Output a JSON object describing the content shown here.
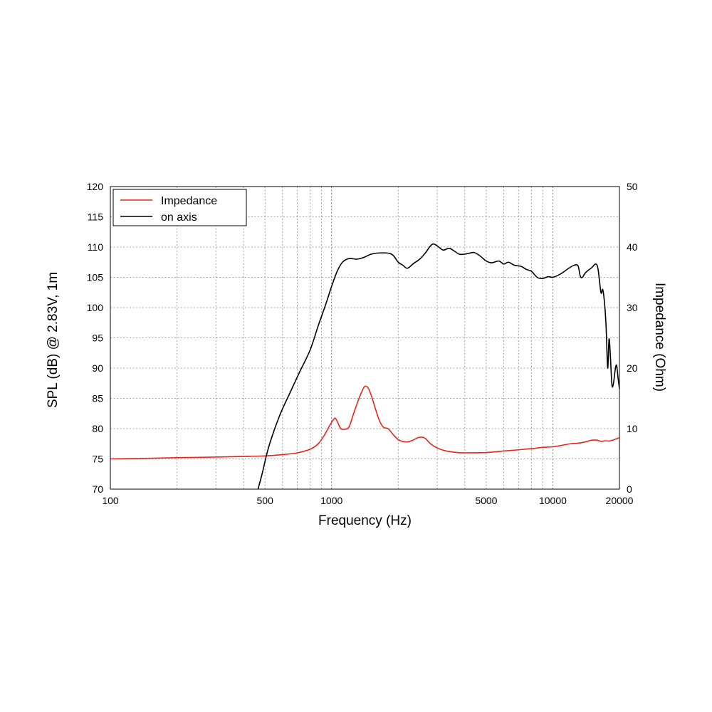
{
  "chart_data": {
    "type": "line",
    "x_scale": "log",
    "xlabel": "Frequency (Hz)",
    "ylabel_left": "SPL (dB) @ 2.83V, 1m",
    "ylabel_right": "Impedance (Ohm)",
    "xlim": [
      100,
      20000
    ],
    "ylim_left": [
      70,
      120
    ],
    "ylim_right": [
      0,
      50
    ],
    "x_tick_labels": [
      "100",
      "500",
      "1000",
      "5000",
      "10000",
      "20000"
    ],
    "x_tick_values": [
      100,
      500,
      1000,
      5000,
      10000,
      20000
    ],
    "y_left_ticks": [
      70,
      75,
      80,
      85,
      90,
      95,
      100,
      105,
      110,
      115,
      120
    ],
    "y_right_ticks": [
      0,
      10,
      20,
      30,
      40,
      50
    ],
    "grid": true,
    "legend": {
      "placement": "top-left",
      "entries": [
        "Impedance",
        "on axis"
      ]
    },
    "colors": {
      "impedance": "#e8251b",
      "on_axis": "#000000"
    },
    "series": [
      {
        "name": "Impedance",
        "axis": "right",
        "color": "#e8251b",
        "points": [
          [
            100,
            5.0
          ],
          [
            150,
            5.1
          ],
          [
            200,
            5.2
          ],
          [
            300,
            5.3
          ],
          [
            400,
            5.4
          ],
          [
            500,
            5.5
          ],
          [
            600,
            5.7
          ],
          [
            700,
            6.0
          ],
          [
            800,
            6.6
          ],
          [
            870,
            7.5
          ],
          [
            930,
            9.0
          ],
          [
            980,
            10.5
          ],
          [
            1020,
            11.5
          ],
          [
            1040,
            11.7
          ],
          [
            1070,
            10.9
          ],
          [
            1100,
            10.0
          ],
          [
            1150,
            9.9
          ],
          [
            1200,
            10.3
          ],
          [
            1250,
            12.2
          ],
          [
            1300,
            14.0
          ],
          [
            1350,
            15.6
          ],
          [
            1400,
            16.8
          ],
          [
            1430,
            17.0
          ],
          [
            1470,
            16.6
          ],
          [
            1520,
            15.2
          ],
          [
            1580,
            13.2
          ],
          [
            1650,
            11.2
          ],
          [
            1720,
            10.2
          ],
          [
            1800,
            10.0
          ],
          [
            1900,
            9.0
          ],
          [
            2000,
            8.2
          ],
          [
            2150,
            7.8
          ],
          [
            2300,
            8.0
          ],
          [
            2450,
            8.5
          ],
          [
            2550,
            8.6
          ],
          [
            2650,
            8.4
          ],
          [
            2800,
            7.5
          ],
          [
            3000,
            6.8
          ],
          [
            3300,
            6.3
          ],
          [
            3700,
            6.05
          ],
          [
            4000,
            6.0
          ],
          [
            5000,
            6.05
          ],
          [
            6000,
            6.3
          ],
          [
            7000,
            6.5
          ],
          [
            8000,
            6.7
          ],
          [
            9000,
            6.9
          ],
          [
            10000,
            7.0
          ],
          [
            11000,
            7.25
          ],
          [
            12000,
            7.5
          ],
          [
            13000,
            7.6
          ],
          [
            14000,
            7.8
          ],
          [
            15000,
            8.1
          ],
          [
            15800,
            8.1
          ],
          [
            16500,
            7.9
          ],
          [
            17300,
            8.0
          ],
          [
            18000,
            7.95
          ],
          [
            19000,
            8.2
          ],
          [
            20000,
            8.5
          ]
        ]
      },
      {
        "name": "on axis",
        "axis": "left",
        "color": "#000000",
        "points": [
          [
            465,
            70
          ],
          [
            485,
            72.5
          ],
          [
            520,
            77
          ],
          [
            580,
            82
          ],
          [
            650,
            86
          ],
          [
            720,
            89.5
          ],
          [
            800,
            93
          ],
          [
            870,
            97
          ],
          [
            940,
            100.5
          ],
          [
            1000,
            103.5
          ],
          [
            1060,
            106
          ],
          [
            1120,
            107.5
          ],
          [
            1200,
            108.1
          ],
          [
            1300,
            108.0
          ],
          [
            1400,
            108.3
          ],
          [
            1500,
            108.8
          ],
          [
            1600,
            109.0
          ],
          [
            1800,
            109.0
          ],
          [
            1900,
            108.6
          ],
          [
            2000,
            107.5
          ],
          [
            2100,
            107.0
          ],
          [
            2200,
            106.5
          ],
          [
            2350,
            107.3
          ],
          [
            2500,
            108.0
          ],
          [
            2650,
            109.0
          ],
          [
            2800,
            110.2
          ],
          [
            2900,
            110.5
          ],
          [
            3050,
            110.0
          ],
          [
            3200,
            109.5
          ],
          [
            3400,
            109.8
          ],
          [
            3600,
            109.3
          ],
          [
            3800,
            108.8
          ],
          [
            4100,
            108.9
          ],
          [
            4400,
            109.1
          ],
          [
            4700,
            108.5
          ],
          [
            5000,
            107.7
          ],
          [
            5300,
            107.4
          ],
          [
            5700,
            107.7
          ],
          [
            6000,
            107.2
          ],
          [
            6300,
            107.5
          ],
          [
            6700,
            107.0
          ],
          [
            7200,
            106.8
          ],
          [
            7600,
            106.3
          ],
          [
            8000,
            106.0
          ],
          [
            8500,
            105.0
          ],
          [
            9000,
            104.8
          ],
          [
            9500,
            105.1
          ],
          [
            10000,
            105.0
          ],
          [
            10500,
            105.3
          ],
          [
            11000,
            105.7
          ],
          [
            11800,
            106.5
          ],
          [
            12500,
            107.0
          ],
          [
            13000,
            106.9
          ],
          [
            13300,
            105.2
          ],
          [
            13600,
            105.0
          ],
          [
            14000,
            105.7
          ],
          [
            14500,
            106.2
          ],
          [
            15000,
            106.6
          ],
          [
            15600,
            107.2
          ],
          [
            16000,
            106.4
          ],
          [
            16500,
            102.5
          ],
          [
            16800,
            103.0
          ],
          [
            17100,
            101.0
          ],
          [
            17400,
            97.0
          ],
          [
            17700,
            90.0
          ],
          [
            17950,
            94.8
          ],
          [
            18200,
            92.0
          ],
          [
            18500,
            87.2
          ],
          [
            18800,
            87.5
          ],
          [
            19100,
            89.5
          ],
          [
            19400,
            90.5
          ],
          [
            19700,
            88.5
          ],
          [
            20000,
            86.5
          ]
        ]
      }
    ]
  }
}
